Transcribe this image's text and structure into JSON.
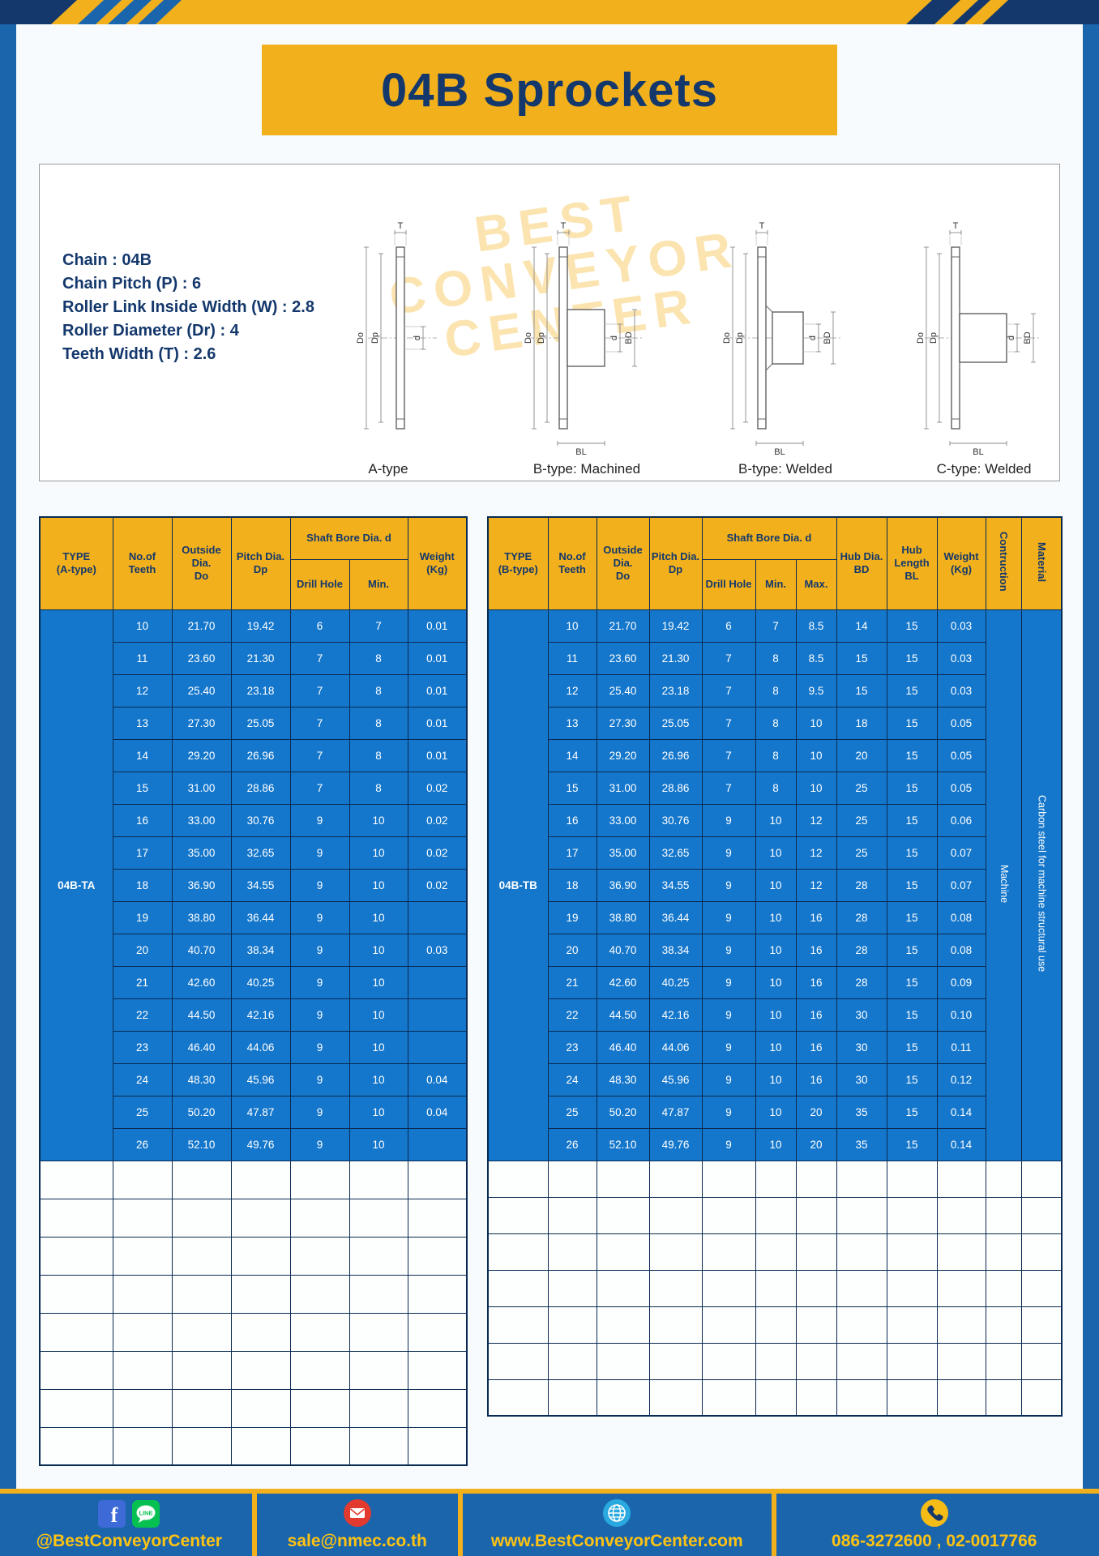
{
  "header": {
    "title": "04B Sprockets"
  },
  "specs": {
    "lines": [
      "Chain : 04B",
      "Chain Pitch (P) : 6",
      "Roller Link Inside Width (W) : 2.8",
      "Roller Diameter (Dr) : 4",
      "Teeth Width (T) : 2.6"
    ]
  },
  "watermark": [
    "BEST",
    "CONVEYOR",
    "CENTER"
  ],
  "diagrams": [
    {
      "caption": "A-type",
      "labels": {
        "T": "T",
        "Do": "Do",
        "Dp": "Dp",
        "d": "d"
      }
    },
    {
      "caption": "B-type: Machined",
      "labels": {
        "T": "T",
        "Do": "Do",
        "Dp": "Dp",
        "d": "d",
        "BD": "BD",
        "BL": "BL"
      }
    },
    {
      "caption": "B-type: Welded",
      "labels": {
        "T": "T",
        "Do": "Do",
        "Dp": "Dp",
        "d": "d",
        "BD": "BD",
        "BL": "BL"
      }
    },
    {
      "caption": "C-type: Welded",
      "labels": {
        "T": "T",
        "Do": "Do",
        "Dp": "Dp",
        "d": "d",
        "BD": "BD",
        "BL": "BL"
      }
    }
  ],
  "tables": {
    "left": {
      "head": {
        "pre": [
          "TYPE\n(A-type)",
          "No.of\nTeeth",
          "Outside\nDia.\nDo",
          "Pitch Dia.\nDp"
        ],
        "group": "Shaft Bore Dia. d",
        "sub": [
          "Drill Hole",
          "Min."
        ],
        "post": [
          "Weight\n(Kg)"
        ],
        "vertical": []
      },
      "type_value": "04B-TA",
      "rows": [
        [
          "10",
          "21.70",
          "19.42",
          "6",
          "7",
          "0.01"
        ],
        [
          "11",
          "23.60",
          "21.30",
          "7",
          "8",
          "0.01"
        ],
        [
          "12",
          "25.40",
          "23.18",
          "7",
          "8",
          "0.01"
        ],
        [
          "13",
          "27.30",
          "25.05",
          "7",
          "8",
          "0.01"
        ],
        [
          "14",
          "29.20",
          "26.96",
          "7",
          "8",
          "0.01"
        ],
        [
          "15",
          "31.00",
          "28.86",
          "7",
          "8",
          "0.02"
        ],
        [
          "16",
          "33.00",
          "30.76",
          "9",
          "10",
          "0.02"
        ],
        [
          "17",
          "35.00",
          "32.65",
          "9",
          "10",
          "0.02"
        ],
        [
          "18",
          "36.90",
          "34.55",
          "9",
          "10",
          "0.02"
        ],
        [
          "19",
          "38.80",
          "36.44",
          "9",
          "10",
          ""
        ],
        [
          "20",
          "40.70",
          "38.34",
          "9",
          "10",
          "0.03"
        ],
        [
          "21",
          "42.60",
          "40.25",
          "9",
          "10",
          ""
        ],
        [
          "22",
          "44.50",
          "42.16",
          "9",
          "10",
          ""
        ],
        [
          "23",
          "46.40",
          "44.06",
          "9",
          "10",
          ""
        ],
        [
          "24",
          "48.30",
          "45.96",
          "9",
          "10",
          "0.04"
        ],
        [
          "25",
          "50.20",
          "47.87",
          "9",
          "10",
          "0.04"
        ],
        [
          "26",
          "52.10",
          "49.76",
          "9",
          "10",
          ""
        ]
      ],
      "vertical_values": [],
      "empty_rows": 8
    },
    "right": {
      "head": {
        "pre": [
          "TYPE\n(B-type)",
          "No.of\nTeeth",
          "Outside\nDia.\nDo",
          "Pitch Dia.\nDp"
        ],
        "group": "Shaft Bore Dia. d",
        "sub": [
          "Drill Hole",
          "Min.",
          "Max."
        ],
        "post": [
          "Hub Dia.\nBD",
          "Hub\nLength\nBL",
          "Weight\n(Kg)"
        ],
        "vertical": [
          "Contruction",
          "Material"
        ]
      },
      "type_value": "04B-TB",
      "rows": [
        [
          "10",
          "21.70",
          "19.42",
          "6",
          "7",
          "8.5",
          "14",
          "15",
          "0.03"
        ],
        [
          "11",
          "23.60",
          "21.30",
          "7",
          "8",
          "8.5",
          "15",
          "15",
          "0.03"
        ],
        [
          "12",
          "25.40",
          "23.18",
          "7",
          "8",
          "9.5",
          "15",
          "15",
          "0.03"
        ],
        [
          "13",
          "27.30",
          "25.05",
          "7",
          "8",
          "10",
          "18",
          "15",
          "0.05"
        ],
        [
          "14",
          "29.20",
          "26.96",
          "7",
          "8",
          "10",
          "20",
          "15",
          "0.05"
        ],
        [
          "15",
          "31.00",
          "28.86",
          "7",
          "8",
          "10",
          "25",
          "15",
          "0.05"
        ],
        [
          "16",
          "33.00",
          "30.76",
          "9",
          "10",
          "12",
          "25",
          "15",
          "0.06"
        ],
        [
          "17",
          "35.00",
          "32.65",
          "9",
          "10",
          "12",
          "25",
          "15",
          "0.07"
        ],
        [
          "18",
          "36.90",
          "34.55",
          "9",
          "10",
          "12",
          "28",
          "15",
          "0.07"
        ],
        [
          "19",
          "38.80",
          "36.44",
          "9",
          "10",
          "16",
          "28",
          "15",
          "0.08"
        ],
        [
          "20",
          "40.70",
          "38.34",
          "9",
          "10",
          "16",
          "28",
          "15",
          "0.08"
        ],
        [
          "21",
          "42.60",
          "40.25",
          "9",
          "10",
          "16",
          "28",
          "15",
          "0.09"
        ],
        [
          "22",
          "44.50",
          "42.16",
          "9",
          "10",
          "16",
          "30",
          "15",
          "0.10"
        ],
        [
          "23",
          "46.40",
          "44.06",
          "9",
          "10",
          "16",
          "30",
          "15",
          "0.11"
        ],
        [
          "24",
          "48.30",
          "45.96",
          "9",
          "10",
          "16",
          "30",
          "15",
          "0.12"
        ],
        [
          "25",
          "50.20",
          "47.87",
          "9",
          "10",
          "20",
          "35",
          "15",
          "0.14"
        ],
        [
          "26",
          "52.10",
          "49.76",
          "9",
          "10",
          "20",
          "35",
          "15",
          "0.14"
        ]
      ],
      "vertical_values": [
        "Machine",
        "Carbon steel for machine structural use"
      ],
      "empty_rows": 7
    }
  },
  "footer": {
    "items": [
      {
        "icons": [
          "facebook",
          "line"
        ],
        "text": "@BestConveyorCenter"
      },
      {
        "icons": [
          "email"
        ],
        "text": "sale@nmec.co.th"
      },
      {
        "icons": [
          "globe"
        ],
        "text": "www.BestConveyorCenter.com"
      },
      {
        "icons": [
          "phone"
        ],
        "text": "086-3272600 , 02-0017766"
      }
    ]
  },
  "colors": {
    "accent_yellow": "#f2b01c",
    "frame_blue": "#1b65ad",
    "table_blue": "#1577cb",
    "navy_text": "#14386c"
  }
}
